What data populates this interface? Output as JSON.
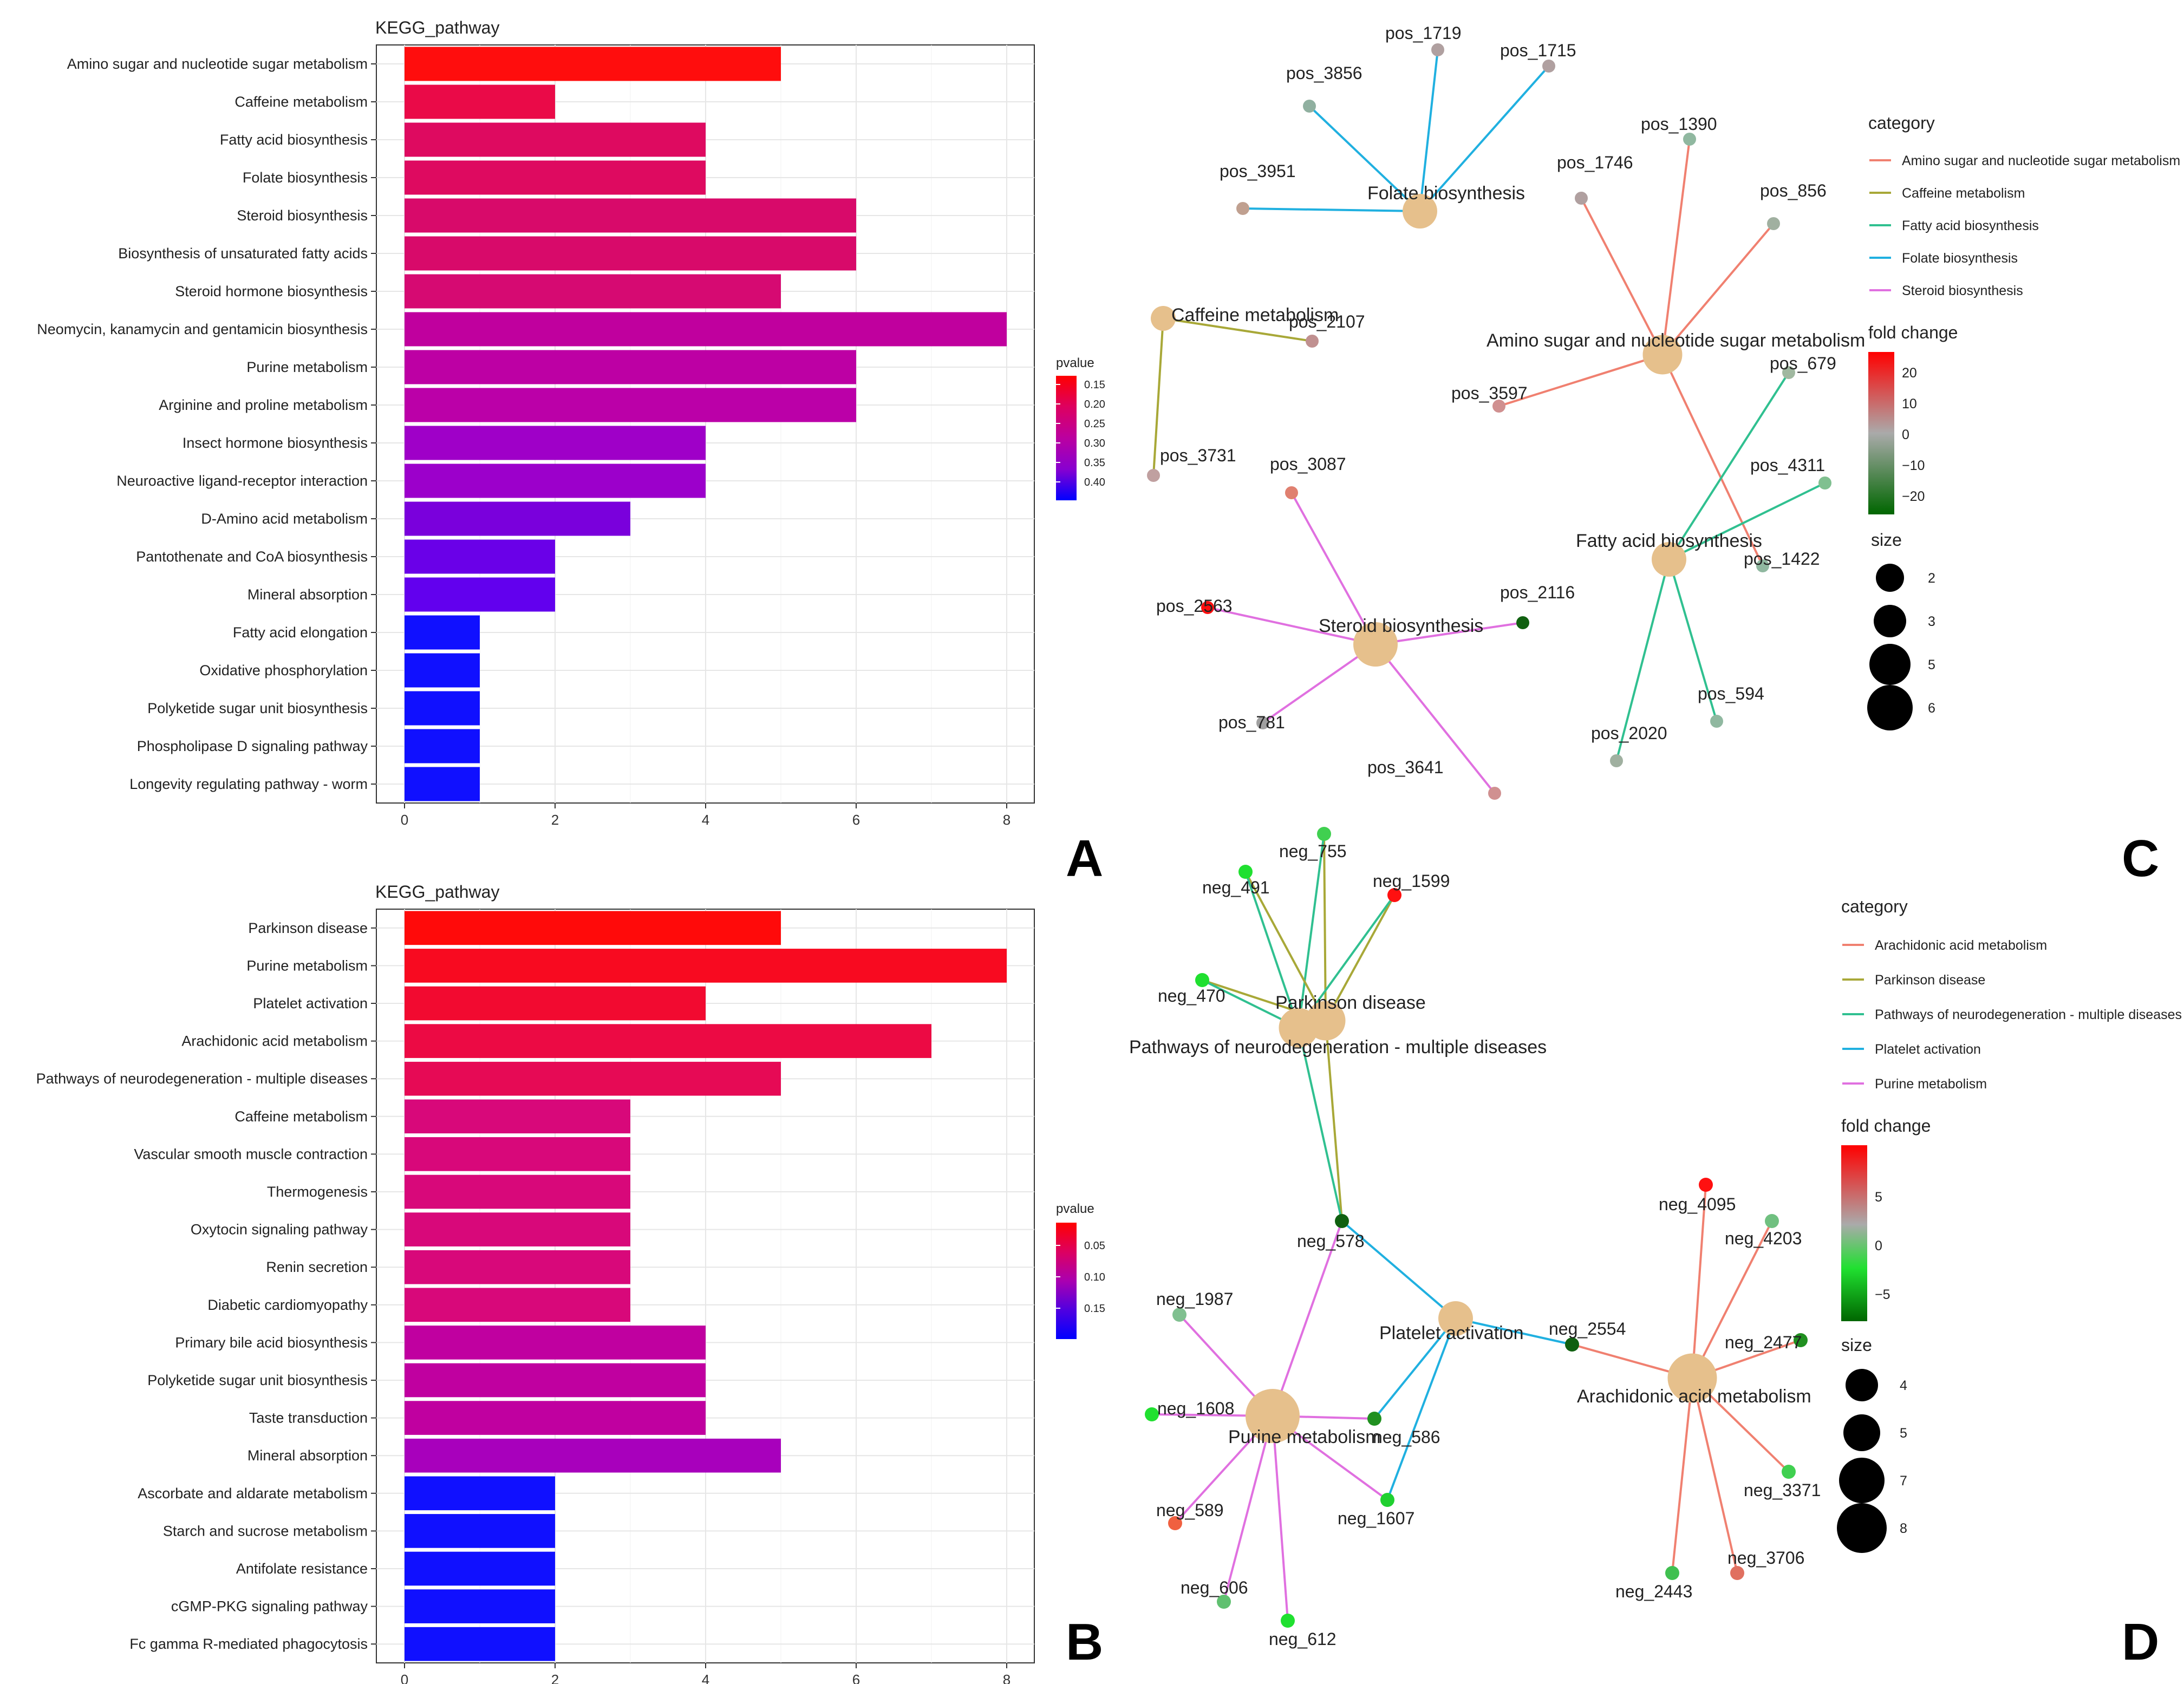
{
  "chart_data": [
    {
      "panel": "A",
      "type": "bar",
      "orientation": "horizontal",
      "title": "KEGG_pathway",
      "xlim": [
        0,
        8.5
      ],
      "xticks": [
        "0",
        "2",
        "4",
        "6",
        "8"
      ],
      "xtick_values": [
        0,
        2,
        4,
        6,
        8
      ],
      "categories": [
        "Amino sugar and nucleotide sugar metabolism",
        "Caffeine metabolism",
        "Fatty acid biosynthesis",
        "Folate biosynthesis",
        "Steroid biosynthesis",
        "Biosynthesis of unsaturated fatty acids",
        "Steroid hormone biosynthesis",
        "Neomycin, kanamycin and gentamicin biosynthesis",
        "Purine metabolism",
        "Arginine and proline metabolism",
        "Insect hormone biosynthesis",
        "Neuroactive ligand-receptor interaction",
        "D-Amino acid metabolism",
        "Pantothenate and CoA biosynthesis",
        "Mineral absorption",
        "Fatty acid elongation",
        "Oxidative phosphorylation",
        "Polyketide sugar unit biosynthesis",
        "Phospholipase D signaling pathway",
        "Longevity regulating pathway - worm"
      ],
      "values": [
        5,
        2,
        4,
        4,
        6,
        6,
        5,
        8,
        6,
        6,
        4,
        4,
        3,
        2,
        2,
        1,
        1,
        1,
        1,
        1
      ],
      "colors": [
        "#ff0d0d",
        "#ea0a48",
        "#de0a60",
        "#de0a60",
        "#d80a6a",
        "#d80a6a",
        "#d60a72",
        "#c0009e",
        "#bd00a4",
        "#bb00a8",
        "#9f00c8",
        "#9c00cb",
        "#7a00dc",
        "#6a00e8",
        "#6200ee",
        "#1010ff",
        "#1010ff",
        "#1010ff",
        "#1010ff",
        "#1010ff"
      ],
      "legend": {
        "title": "pvalue",
        "labels": [
          "0.15",
          "0.20",
          "0.25",
          "0.30",
          "0.35",
          "0.40"
        ],
        "gradient": [
          "#ff0000",
          "#dd0060",
          "#bb00a0",
          "#8800d0",
          "#0000ff"
        ]
      }
    },
    {
      "panel": "B",
      "type": "bar",
      "orientation": "horizontal",
      "title": "KEGG_pathway",
      "xlim": [
        0,
        8.5
      ],
      "xticks": [
        "0",
        "2",
        "4",
        "6",
        "8"
      ],
      "xtick_values": [
        0,
        2,
        4,
        6,
        8
      ],
      "categories": [
        "Parkinson disease",
        "Purine metabolism",
        "Platelet activation",
        "Arachidonic acid metabolism",
        "Pathways of neurodegeneration - multiple diseases",
        "Caffeine metabolism",
        "Vascular smooth muscle contraction",
        "Thermogenesis",
        "Oxytocin signaling pathway",
        "Renin secretion",
        "Diabetic cardiomyopathy",
        "Primary bile acid biosynthesis",
        "Polyketide sugar unit biosynthesis",
        "Taste transduction",
        "Mineral absorption",
        "Ascorbate and aldarate metabolism",
        "Starch and sucrose metabolism",
        "Antifolate resistance",
        "cGMP-PKG signaling pathway",
        "Fc gamma R-mediated phagocytosis"
      ],
      "values": [
        5,
        8,
        4,
        7,
        5,
        3,
        3,
        3,
        3,
        3,
        3,
        4,
        4,
        4,
        5,
        2,
        2,
        2,
        2,
        2
      ],
      "colors": [
        "#ff0a0a",
        "#f80a20",
        "#f20a30",
        "#ec0a44",
        "#e60a55",
        "#d8087a",
        "#d8087a",
        "#d8087a",
        "#d8087a",
        "#d8087a",
        "#d8087a",
        "#c000a0",
        "#c000a0",
        "#c000a0",
        "#a800bc",
        "#1010ff",
        "#1010ff",
        "#1010ff",
        "#1010ff",
        "#1010ff"
      ],
      "legend": {
        "title": "pvalue",
        "labels": [
          "0.05",
          "0.10",
          "0.15"
        ],
        "gradient": [
          "#ff0000",
          "#dd0060",
          "#aa00b0",
          "#5000e0",
          "#0000ff"
        ]
      }
    }
  ],
  "panels": {
    "A": "A",
    "B": "B",
    "C": "C",
    "D": "D"
  },
  "network_c": {
    "categories": [
      {
        "name": "Amino sugar and nucleotide sugar metabolism",
        "color": "#f08070"
      },
      {
        "name": "Caffeine metabolism",
        "color": "#a8a838"
      },
      {
        "name": "Fatty acid biosynthesis",
        "color": "#30c090"
      },
      {
        "name": "Folate biosynthesis",
        "color": "#20b0e0"
      },
      {
        "name": "Steroid biosynthesis",
        "color": "#e070e0"
      }
    ],
    "fold_change": {
      "title": "fold change",
      "labels": [
        "20",
        "10",
        "0",
        "−10",
        "−20"
      ]
    },
    "size": {
      "title": "size",
      "labels": [
        "2",
        "3",
        "5",
        "6"
      ]
    },
    "hubs": [
      {
        "id": "folate",
        "label": "Folate biosynthesis",
        "size": 4
      },
      {
        "id": "caffeine",
        "label": "Caffeine metabolism",
        "size": 2
      },
      {
        "id": "amino",
        "label": "Amino sugar and nucleotide sugar metabolism",
        "size": 5
      },
      {
        "id": "fatty",
        "label": "Fatty acid biosynthesis",
        "size": 4
      },
      {
        "id": "steroid",
        "label": "Steroid biosynthesis",
        "size": 6
      }
    ],
    "genes": [
      {
        "label": "pos_1719",
        "hub": "folate",
        "color": "#b0a0a0"
      },
      {
        "label": "pos_1715",
        "hub": "folate",
        "color": "#b0a0a0"
      },
      {
        "label": "pos_3856",
        "hub": "folate",
        "color": "#90b0a0"
      },
      {
        "label": "pos_3951",
        "hub": "folate",
        "color": "#c0a090"
      },
      {
        "label": "pos_2107",
        "hub": "caffeine",
        "color": "#c09090"
      },
      {
        "label": "pos_3731",
        "hub": "caffeine",
        "color": "#c0a0a0"
      },
      {
        "label": "pos_1390",
        "hub": "amino",
        "color": "#90b8a0"
      },
      {
        "label": "pos_1746",
        "hub": "amino",
        "color": "#b0a0a0"
      },
      {
        "label": "pos_856",
        "hub": "amino",
        "color": "#a0b0a0"
      },
      {
        "label": "pos_3597",
        "hub": "amino",
        "color": "#d09090"
      },
      {
        "label": "pos_1422",
        "hub": "amino",
        "color": "#90b8a0"
      },
      {
        "label": "pos_679",
        "hub": "fatty",
        "color": "#a0b8a0"
      },
      {
        "label": "pos_4311",
        "hub": "fatty",
        "color": "#80c090"
      },
      {
        "label": "pos_594",
        "hub": "fatty",
        "color": "#90b8a0"
      },
      {
        "label": "pos_2020",
        "hub": "fatty",
        "color": "#a0b0a0"
      },
      {
        "label": "pos_3087",
        "hub": "steroid",
        "color": "#e08070"
      },
      {
        "label": "pos_2563",
        "hub": "steroid",
        "color": "#ff1010"
      },
      {
        "label": "pos_2116",
        "hub": "steroid",
        "color": "#106010"
      },
      {
        "label": "pos_781",
        "hub": "steroid",
        "color": "#a0a0a0"
      },
      {
        "label": "pos_3641",
        "hub": "steroid",
        "color": "#d09090"
      }
    ]
  },
  "network_d": {
    "categories": [
      {
        "name": "Arachidonic acid metabolism",
        "color": "#f08070"
      },
      {
        "name": "Parkinson disease",
        "color": "#a8a838"
      },
      {
        "name": "Pathways of neurodegeneration - multiple diseases",
        "color": "#30c090"
      },
      {
        "name": "Platelet activation",
        "color": "#20b0e0"
      },
      {
        "name": "Purine metabolism",
        "color": "#e070e0"
      }
    ],
    "fold_change": {
      "title": "fold change",
      "labels": [
        "5",
        "0",
        "−5"
      ]
    },
    "size": {
      "title": "size",
      "labels": [
        "4",
        "5",
        "7",
        "8"
      ]
    },
    "hubs": [
      {
        "id": "parkinson",
        "label": "Parkinson disease",
        "size": 5
      },
      {
        "id": "pathways",
        "label": "Pathways of neurodegeneration - multiple diseases",
        "size": 5
      },
      {
        "id": "platelet",
        "label": "Platelet activation",
        "size": 4
      },
      {
        "id": "purine",
        "label": "Purine metabolism",
        "size": 8
      },
      {
        "id": "arachidonic",
        "label": "Arachidonic acid metabolism",
        "size": 7
      }
    ],
    "genes": [
      {
        "label": "neg_755",
        "color": "#40d050"
      },
      {
        "label": "neg_491",
        "color": "#20e030"
      },
      {
        "label": "neg_1599",
        "color": "#ff1010"
      },
      {
        "label": "neg_470",
        "color": "#20e030"
      },
      {
        "label": "neg_578",
        "color": "#106010"
      },
      {
        "label": "neg_1987",
        "color": "#80c090"
      },
      {
        "label": "neg_1608",
        "color": "#20e030"
      },
      {
        "label": "neg_586",
        "color": "#209020"
      },
      {
        "label": "neg_1607",
        "color": "#20d030"
      },
      {
        "label": "neg_589",
        "color": "#f06040"
      },
      {
        "label": "neg_606",
        "color": "#60c070"
      },
      {
        "label": "neg_612",
        "color": "#20e030"
      },
      {
        "label": "neg_2554",
        "color": "#106010"
      },
      {
        "label": "neg_4095",
        "color": "#ff1010"
      },
      {
        "label": "neg_4203",
        "color": "#70c080"
      },
      {
        "label": "neg_2477",
        "color": "#209020"
      },
      {
        "label": "neg_3371",
        "color": "#40d050"
      },
      {
        "label": "neg_3706",
        "color": "#e07060"
      },
      {
        "label": "neg_2443",
        "color": "#40c050"
      }
    ]
  }
}
